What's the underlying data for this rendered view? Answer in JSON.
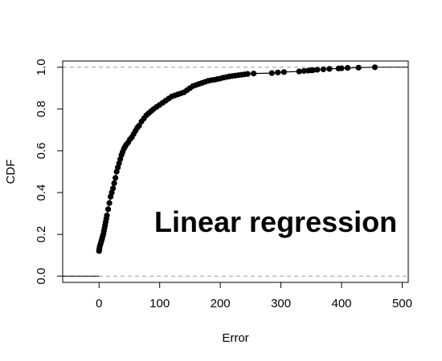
{
  "chart_data": {
    "type": "scatter",
    "title": "",
    "xlabel": "Error",
    "ylabel": "CDF",
    "xlim": [
      -60,
      510
    ],
    "ylim": [
      -0.03,
      1.03
    ],
    "xticks": [
      0,
      100,
      200,
      300,
      400,
      500
    ],
    "yticks": [
      0.0,
      0.2,
      0.4,
      0.6,
      0.8,
      1.0
    ],
    "xtick_labels": [
      "0",
      "100",
      "200",
      "300",
      "400",
      "500"
    ],
    "ytick_labels": [
      "0.0",
      "0.2",
      "0.4",
      "0.6",
      "0.8",
      "1.0"
    ],
    "reference_lines_y": [
      0,
      1
    ],
    "reference_line_style": "dashed gray",
    "grid": false,
    "legend": "none",
    "annotation": "Linear regression",
    "series": [
      {
        "color": "#000000",
        "marker": "filled-circle",
        "connected": true,
        "x": [
          0,
          0.5,
          1,
          2,
          3,
          4,
          5,
          6,
          7,
          8,
          9,
          10,
          11,
          12,
          13,
          15,
          17,
          19,
          21,
          23,
          25,
          27,
          29,
          31,
          33,
          35,
          37,
          39,
          41,
          43,
          45,
          48,
          51,
          54,
          57,
          60,
          63,
          66,
          70,
          74,
          78,
          82,
          86,
          90,
          95,
          100,
          105,
          110,
          115,
          120,
          125,
          130,
          135,
          140,
          145,
          150,
          155,
          160,
          165,
          170,
          175,
          180,
          185,
          190,
          195,
          200,
          205,
          210,
          215,
          220,
          225,
          230,
          235,
          240,
          245,
          255,
          285,
          295,
          305,
          330,
          338,
          345,
          350,
          353,
          360,
          370,
          380,
          395,
          400,
          410,
          428,
          455
        ],
        "y": [
          0.12,
          0.13,
          0.14,
          0.15,
          0.16,
          0.17,
          0.18,
          0.19,
          0.2,
          0.215,
          0.23,
          0.245,
          0.26,
          0.275,
          0.29,
          0.32,
          0.35,
          0.38,
          0.4,
          0.42,
          0.445,
          0.47,
          0.5,
          0.52,
          0.54,
          0.56,
          0.58,
          0.595,
          0.61,
          0.62,
          0.63,
          0.64,
          0.655,
          0.665,
          0.68,
          0.695,
          0.71,
          0.72,
          0.74,
          0.755,
          0.77,
          0.78,
          0.79,
          0.8,
          0.81,
          0.82,
          0.83,
          0.84,
          0.85,
          0.86,
          0.865,
          0.87,
          0.875,
          0.88,
          0.89,
          0.9,
          0.91,
          0.915,
          0.92,
          0.925,
          0.93,
          0.935,
          0.938,
          0.94,
          0.943,
          0.946,
          0.95,
          0.953,
          0.956,
          0.958,
          0.96,
          0.962,
          0.964,
          0.966,
          0.968,
          0.97,
          0.972,
          0.975,
          0.977,
          0.98,
          0.982,
          0.984,
          0.985,
          0.986,
          0.988,
          0.99,
          0.992,
          0.994,
          0.995,
          0.997,
          0.998,
          1.0
        ]
      }
    ]
  }
}
